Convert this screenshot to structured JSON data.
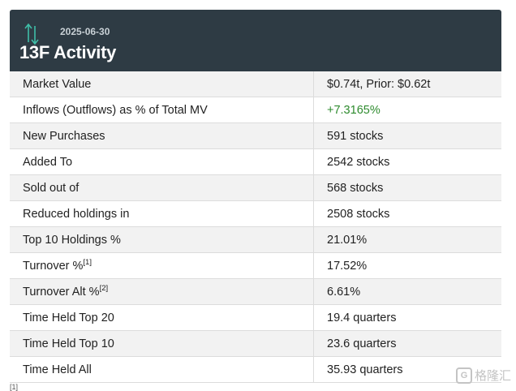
{
  "header": {
    "date": "2025-06-30",
    "title": "13F Activity"
  },
  "rows": [
    {
      "label": "Market Value",
      "value": "$0.74t, Prior: $0.62t"
    },
    {
      "label": "Inflows (Outflows) as % of Total MV",
      "value": "+7.3165%"
    },
    {
      "label": "New Purchases",
      "value": "591 stocks"
    },
    {
      "label": "Added To",
      "value": "2542 stocks"
    },
    {
      "label": "Sold out of",
      "value": "568 stocks"
    },
    {
      "label": "Reduced holdings in",
      "value": "2508 stocks"
    },
    {
      "label": "Top 10 Holdings %",
      "value": "21.01%"
    },
    {
      "label": "Turnover %",
      "sup": "[1]",
      "value": "17.52%"
    },
    {
      "label": "Turnover Alt %",
      "sup": "[2]",
      "value": "6.61%"
    },
    {
      "label": "Time Held Top 20",
      "value": "19.4 quarters"
    },
    {
      "label": "Time Held Top 10",
      "value": "23.6 quarters"
    },
    {
      "label": "Time Held All",
      "value": "35.93 quarters"
    }
  ],
  "footnote_marker": "[1]",
  "watermark": {
    "logo": "G",
    "text": "格隆汇"
  },
  "colors": {
    "header_bg": "#2e3b44",
    "positive": "#2e8b2e",
    "arrow": "#3fbfa8"
  }
}
